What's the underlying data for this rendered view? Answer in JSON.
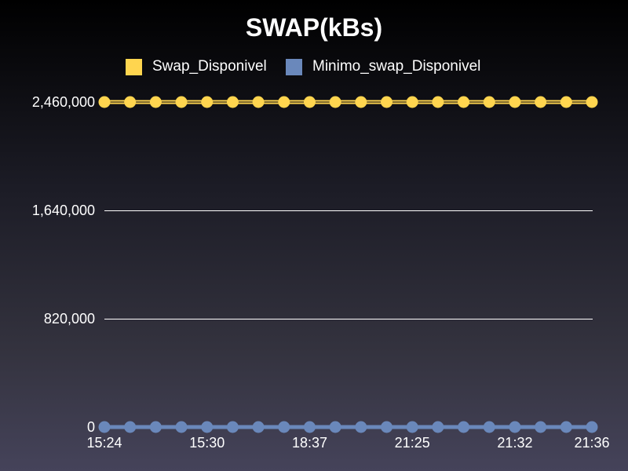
{
  "chart_data": {
    "type": "line",
    "title": "SWAP(kBs)",
    "xlabel": "",
    "ylabel": "",
    "ylim": [
      0,
      2460000
    ],
    "yticks": [
      0,
      820000,
      1640000,
      2460000
    ],
    "ytick_labels": [
      "0",
      "820,000",
      "1,640,000",
      "2,460,000"
    ],
    "x_tick_labels": [
      "15:24",
      "15:30",
      "18:37",
      "21:25",
      "21:32",
      "21:36"
    ],
    "x_tick_indices": [
      0,
      4,
      8,
      12,
      16,
      19
    ],
    "point_count": 20,
    "grid": true,
    "legend_position": "top-center",
    "series": [
      {
        "name": "Swap_Disponivel",
        "color": "#ffd54f",
        "values": [
          2460000,
          2460000,
          2460000,
          2460000,
          2460000,
          2460000,
          2460000,
          2460000,
          2460000,
          2460000,
          2460000,
          2460000,
          2460000,
          2460000,
          2460000,
          2460000,
          2460000,
          2460000,
          2460000,
          2460000
        ]
      },
      {
        "name": "Minimo_swap_Disponivel",
        "color": "#6a88bb",
        "values": [
          0,
          0,
          0,
          0,
          0,
          0,
          0,
          0,
          0,
          0,
          0,
          0,
          0,
          0,
          0,
          0,
          0,
          0,
          0,
          0
        ]
      }
    ]
  }
}
